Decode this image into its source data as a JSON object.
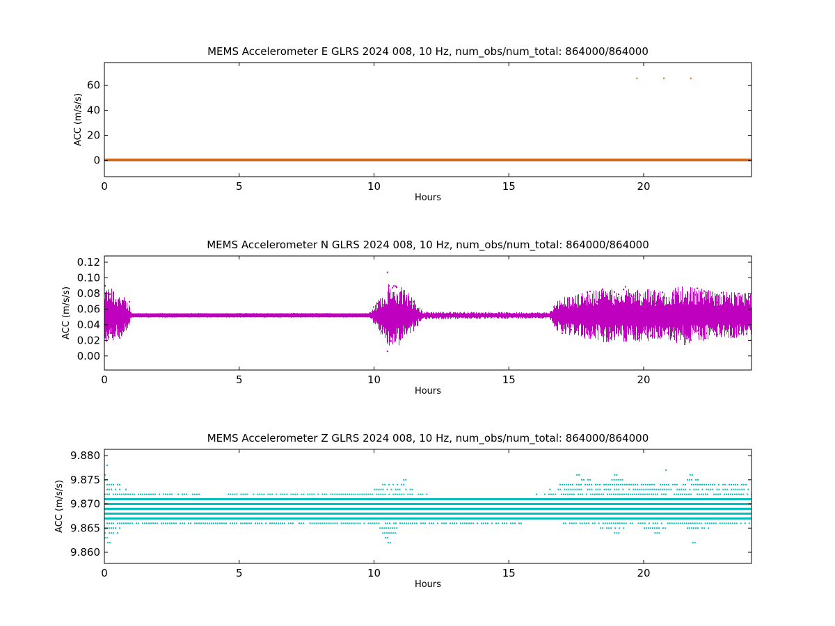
{
  "chart_data": [
    {
      "type": "scatter",
      "title": "MEMS Accelerometer E GLRS 2024 008, 10 Hz, num_obs/num_total: 864000/864000",
      "xlabel": "Hours",
      "ylabel": "ACC (m/s/s)",
      "xlim": [
        0,
        24
      ],
      "ylim": [
        -13,
        78
      ],
      "xticks": [
        0,
        5,
        10,
        15,
        20
      ],
      "xtick_labels": [
        "0",
        "5",
        "10",
        "15",
        "20"
      ],
      "yticks": [
        0,
        20,
        40,
        60
      ],
      "ytick_labels": [
        "0",
        "20",
        "40",
        "60"
      ],
      "grid": false,
      "color": "#d2691e",
      "series": [
        {
          "baseline": 0.3,
          "baseline_x_range": [
            0,
            24
          ],
          "outliers": [
            {
              "x": 19.75,
              "y": 65.5
            },
            {
              "x": 20.75,
              "y": 65.5
            },
            {
              "x": 21.75,
              "y": 65.5
            }
          ]
        }
      ]
    },
    {
      "type": "scatter",
      "title": "MEMS Accelerometer N GLRS 2024 008, 10 Hz, num_obs/num_total: 864000/864000",
      "xlabel": "Hours",
      "ylabel": "ACC (m/s/s)",
      "xlim": [
        0,
        24
      ],
      "ylim": [
        -0.018,
        0.128
      ],
      "xticks": [
        0,
        5,
        10,
        15,
        20
      ],
      "xtick_labels": [
        "0",
        "5",
        "10",
        "15",
        "20"
      ],
      "yticks": [
        0.0,
        0.02,
        0.04,
        0.06,
        0.08,
        0.1,
        0.12
      ],
      "ytick_labels": [
        "0.00",
        "0.02",
        "0.04",
        "0.06",
        "0.08",
        "0.10",
        "0.12"
      ],
      "grid": false,
      "color": "#bf00bf",
      "series": [
        {
          "center": 0.052,
          "envelope": [
            {
              "x": 0.0,
              "lo": 0.015,
              "hi": 0.09
            },
            {
              "x": 0.5,
              "lo": 0.02,
              "hi": 0.085
            },
            {
              "x": 0.9,
              "lo": 0.038,
              "hi": 0.07
            },
            {
              "x": 1.0,
              "lo": 0.049,
              "hi": 0.055
            },
            {
              "x": 9.8,
              "lo": 0.049,
              "hi": 0.055
            },
            {
              "x": 10.0,
              "lo": 0.04,
              "hi": 0.065
            },
            {
              "x": 10.5,
              "lo": 0.012,
              "hi": 0.092
            },
            {
              "x": 11.0,
              "lo": 0.015,
              "hi": 0.093
            },
            {
              "x": 11.5,
              "lo": 0.035,
              "hi": 0.075
            },
            {
              "x": 11.8,
              "lo": 0.047,
              "hi": 0.057
            },
            {
              "x": 16.5,
              "lo": 0.048,
              "hi": 0.056
            },
            {
              "x": 16.8,
              "lo": 0.03,
              "hi": 0.075
            },
            {
              "x": 17.5,
              "lo": 0.025,
              "hi": 0.08
            },
            {
              "x": 18.5,
              "lo": 0.02,
              "hi": 0.09
            },
            {
              "x": 19.5,
              "lo": 0.02,
              "hi": 0.09
            },
            {
              "x": 20.5,
              "lo": 0.025,
              "hi": 0.09
            },
            {
              "x": 21.5,
              "lo": 0.015,
              "hi": 0.09
            },
            {
              "x": 22.5,
              "lo": 0.02,
              "hi": 0.085
            },
            {
              "x": 24.0,
              "lo": 0.025,
              "hi": 0.08
            }
          ],
          "spikes": [
            {
              "x": 10.5,
              "y": 0.107
            },
            {
              "x": 10.5,
              "y": 0.006
            }
          ]
        }
      ]
    },
    {
      "type": "scatter",
      "title": "MEMS Accelerometer Z GLRS 2024 008, 10 Hz, num_obs/num_total: 864000/864000",
      "xlabel": "Hours",
      "ylabel": "ACC (m/s/s)",
      "xlim": [
        0,
        24
      ],
      "ylim": [
        9.8577,
        9.8813
      ],
      "xticks": [
        0,
        5,
        10,
        15,
        20
      ],
      "xtick_labels": [
        "0",
        "5",
        "10",
        "15",
        "20"
      ],
      "yticks": [
        9.86,
        9.865,
        9.87,
        9.875,
        9.88
      ],
      "ytick_labels": [
        "9.860",
        "9.865",
        "9.870",
        "9.875",
        "9.880"
      ],
      "grid": false,
      "color": "#00bfbf",
      "series": [
        {
          "resolution": 0.001,
          "levels": [
            {
              "y": 9.862,
              "segments": [
                [
                  0.1,
                  0.2
                ],
                [
                  10.5,
                  10.6
                ],
                [
                  21.8,
                  21.9
                ]
              ]
            },
            {
              "y": 9.863,
              "segments": [
                [
                  0.0,
                  0.1
                ],
                [
                  10.4,
                  10.5
                ]
              ]
            },
            {
              "y": 9.864,
              "segments": [
                [
                  0.0,
                  0.5
                ],
                [
                  10.3,
                  10.8
                ],
                [
                  18.9,
                  19.1
                ],
                [
                  20.4,
                  20.6
                ]
              ]
            },
            {
              "y": 9.865,
              "segments": [
                [
                  0.0,
                  0.6
                ],
                [
                  10.2,
                  10.9
                ],
                [
                  18.3,
                  19.3
                ],
                [
                  20.0,
                  21.0
                ],
                [
                  21.6,
                  22.4
                ]
              ]
            },
            {
              "y": 9.866,
              "segments": [
                [
                  0.0,
                  7.4
                ],
                [
                  7.6,
                  10.2
                ],
                [
                  10.4,
                  15.5
                ],
                [
                  17.0,
                  23.9
                ]
              ]
            },
            {
              "y": 9.867,
              "segments": [
                [
                  0.0,
                  24.0
                ]
              ]
            },
            {
              "y": 9.868,
              "segments": [
                [
                  0.0,
                  24.0
                ]
              ]
            },
            {
              "y": 9.869,
              "segments": [
                [
                  0.0,
                  24.0
                ]
              ]
            },
            {
              "y": 9.87,
              "segments": [
                [
                  0.0,
                  24.0
                ]
              ]
            },
            {
              "y": 9.871,
              "segments": [
                [
                  0.0,
                  24.0
                ]
              ]
            },
            {
              "y": 9.872,
              "segments": [
                [
                  0.0,
                  3.5
                ],
                [
                  4.5,
                  12.0
                ],
                [
                  16.0,
                  24.0
                ]
              ]
            },
            {
              "y": 9.873,
              "segments": [
                [
                  0.0,
                  0.8
                ],
                [
                  10.0,
                  11.6
                ],
                [
                  16.5,
                  23.9
                ]
              ]
            },
            {
              "y": 9.874,
              "segments": [
                [
                  0.0,
                  0.7
                ],
                [
                  10.3,
                  11.3
                ],
                [
                  16.8,
                  23.8
                ]
              ]
            },
            {
              "y": 9.875,
              "segments": [
                [
                  0.0,
                  0.1
                ],
                [
                  11.0,
                  11.2
                ],
                [
                  17.6,
                  18.0
                ],
                [
                  18.8,
                  19.2
                ],
                [
                  21.6,
                  22.0
                ]
              ]
            },
            {
              "y": 9.876,
              "segments": [
                [
                  0.0,
                  0.1
                ],
                [
                  17.5,
                  17.6
                ],
                [
                  18.9,
                  19.0
                ],
                [
                  21.7,
                  21.8
                ]
              ]
            },
            {
              "y": 9.877,
              "segments": [
                [
                  20.8,
                  20.9
                ]
              ]
            },
            {
              "y": 9.878,
              "segments": [
                [
                  0.0,
                  0.1
                ]
              ]
            }
          ]
        }
      ]
    }
  ]
}
